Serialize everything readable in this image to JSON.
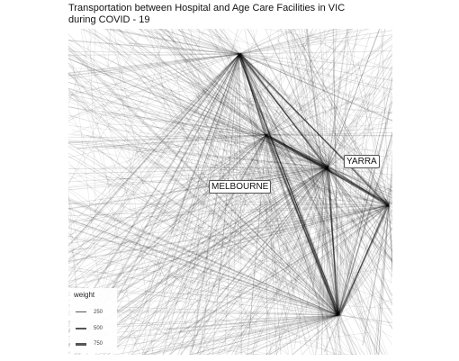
{
  "map": {
    "title": "Transportation between Hospital and Age Care Facilities in VIC\nduring COVID - 19",
    "labels": [
      {
        "name": "MELBOURNE"
      },
      {
        "name": "YARRA"
      }
    ],
    "legend": {
      "title": "weight",
      "items": [
        {
          "label": "250",
          "value": 250
        },
        {
          "label": "500",
          "value": 500
        },
        {
          "label": "750",
          "value": 750
        }
      ]
    },
    "colors": {
      "line": "#000000",
      "background": "#ffffff",
      "label_border": "#555555"
    }
  }
}
